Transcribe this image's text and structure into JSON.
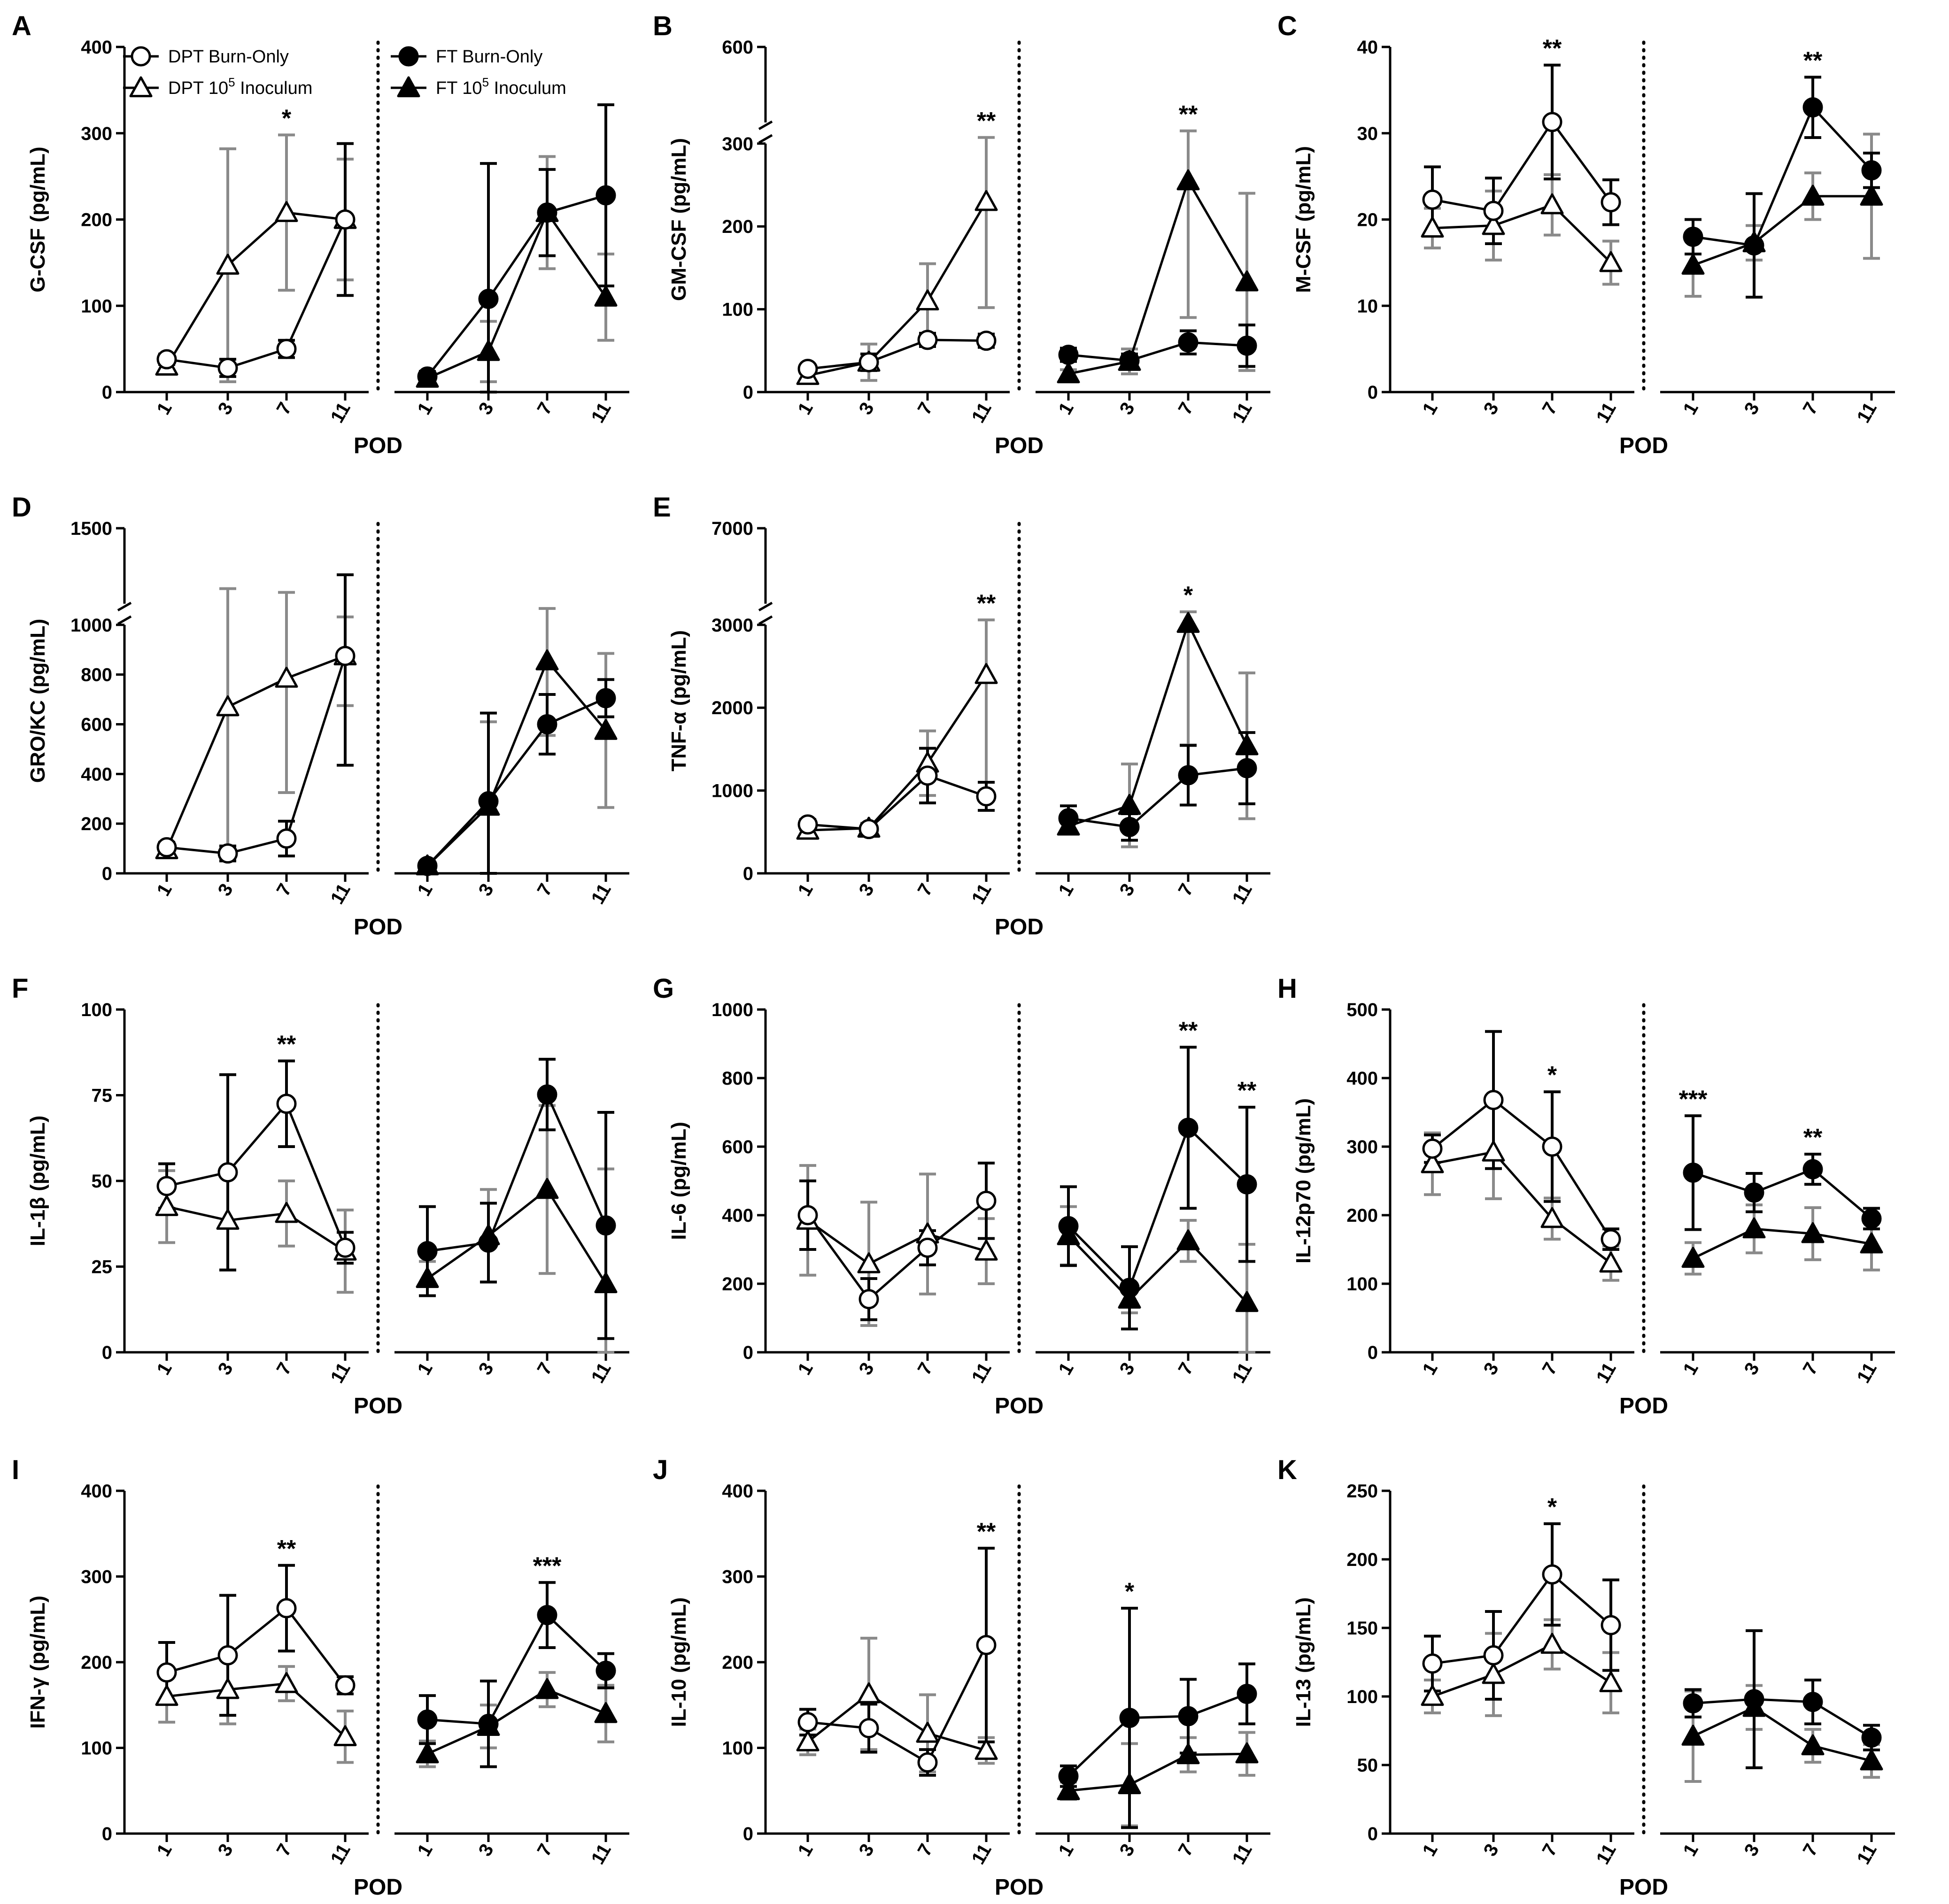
{
  "legend": [
    {
      "label": "DPT Burn-Only",
      "marker": "circle-open"
    },
    {
      "label": "DPT 10",
      "sup": "5",
      "suffix": " Inoculum",
      "marker": "triangle-open"
    },
    {
      "label": "FT Burn-Only",
      "marker": "circle-filled"
    },
    {
      "label": "FT 10",
      "sup": "5",
      "suffix": " Inoculum",
      "marker": "triangle-filled"
    }
  ],
  "chart_data": [
    {
      "panel": "A",
      "type": "line",
      "title": "",
      "ylabel": "G-CSF (pg/mL)",
      "xlabel": "POD",
      "categories": [
        "1",
        "3",
        "7",
        "11"
      ],
      "ylim": [
        0,
        400
      ],
      "yticks": [
        "0",
        "100",
        "200",
        "300",
        "400"
      ],
      "series": [
        {
          "name": "DPT Burn-Only",
          "values": [
            38,
            28,
            50,
            200
          ],
          "err": [
            6,
            10,
            10,
            88
          ]
        },
        {
          "name": "DPT 10^5 Inoculum",
          "values": [
            30,
            147,
            208,
            200
          ],
          "err": [
            6,
            135,
            90,
            70
          ]
        },
        {
          "name": "FT Burn-Only",
          "values": [
            18,
            108,
            208,
            228
          ],
          "err": [
            6,
            157,
            50,
            105
          ]
        },
        {
          "name": "FT 10^5 Inoculum",
          "values": [
            16,
            47,
            208,
            110
          ],
          "err": [
            6,
            35,
            65,
            50
          ]
        }
      ],
      "significance": [
        {
          "group": "DPT",
          "pod": "7",
          "label": "*"
        }
      ]
    },
    {
      "panel": "B",
      "type": "line",
      "title": "",
      "ylabel": "GM-CSF (pg/mL)",
      "xlabel": "POD",
      "categories": [
        "1",
        "3",
        "7",
        "11"
      ],
      "ylim": [
        0,
        600
      ],
      "axis_break": [
        300,
        500
      ],
      "yticks": [
        "0",
        "100",
        "200",
        "300",
        "600"
      ],
      "series": [
        {
          "name": "DPT Burn-Only",
          "values": [
            28,
            36,
            63,
            62
          ],
          "err": [
            5,
            10,
            8,
            8
          ]
        },
        {
          "name": "DPT 10^5 Inoculum",
          "values": [
            20,
            36,
            110,
            230
          ],
          "err": [
            5,
            22,
            45,
            128
          ]
        },
        {
          "name": "FT Burn-Only",
          "values": [
            45,
            38,
            60,
            56
          ],
          "err": [
            8,
            8,
            14,
            25
          ]
        },
        {
          "name": "FT 10^5 Inoculum",
          "values": [
            22,
            37,
            255,
            133
          ],
          "err": [
            5,
            15,
            165,
            107
          ]
        }
      ],
      "significance": [
        {
          "group": "DPT",
          "pod": "11",
          "label": "**"
        },
        {
          "group": "FT",
          "pod": "7",
          "label": "**"
        }
      ]
    },
    {
      "panel": "C",
      "type": "line",
      "title": "",
      "ylabel": "M-CSF (pg/mL)",
      "xlabel": "POD",
      "categories": [
        "1",
        "3",
        "7",
        "11"
      ],
      "ylim": [
        0,
        40
      ],
      "yticks": [
        "0",
        "10",
        "20",
        "30",
        "40"
      ],
      "series": [
        {
          "name": "DPT Burn-Only",
          "values": [
            22.3,
            21,
            31.3,
            22
          ],
          "err": [
            3.8,
            3.8,
            6.6,
            2.6
          ]
        },
        {
          "name": "DPT 10^5 Inoculum",
          "values": [
            19,
            19.3,
            21.7,
            15
          ],
          "err": [
            2.3,
            4,
            3.5,
            2.5
          ]
        },
        {
          "name": "FT Burn-Only",
          "values": [
            18,
            17,
            33,
            25.7
          ],
          "err": [
            2,
            6,
            3.5,
            2
          ]
        },
        {
          "name": "FT 10^5 Inoculum",
          "values": [
            14.7,
            17.3,
            22.7,
            22.7
          ],
          "err": [
            3.6,
            2,
            2.7,
            7.2
          ]
        }
      ],
      "significance": [
        {
          "group": "DPT",
          "pod": "7",
          "label": "**"
        },
        {
          "group": "FT",
          "pod": "7",
          "label": "**"
        }
      ]
    },
    {
      "panel": "D",
      "type": "line",
      "title": "",
      "ylabel": "GRO/KC (pg/mL)",
      "xlabel": "POD",
      "categories": [
        "1",
        "3",
        "7",
        "11"
      ],
      "ylim": [
        0,
        1500
      ],
      "axis_break": [
        1000,
        1200
      ],
      "yticks": [
        "0",
        "200",
        "400",
        "600",
        "800",
        "1000",
        "1500"
      ],
      "series": [
        {
          "name": "DPT Burn-Only",
          "values": [
            105,
            80,
            140,
            875
          ],
          "err": [
            20,
            30,
            70,
            440
          ]
        },
        {
          "name": "DPT 10^5 Inoculum",
          "values": [
            95,
            670,
            785,
            875
          ],
          "err": [
            20,
            590,
            460,
            200
          ]
        },
        {
          "name": "FT Burn-Only",
          "values": [
            30,
            290,
            600,
            705
          ],
          "err": [
            10,
            355,
            120,
            75
          ]
        },
        {
          "name": "FT 10^5 Inoculum",
          "values": [
            30,
            270,
            855,
            575
          ],
          "err": [
            10,
            340,
            300,
            310
          ]
        }
      ],
      "significance": []
    },
    {
      "panel": "E",
      "type": "line",
      "title": "",
      "ylabel": "TNF-α (pg/mL)",
      "xlabel": "POD",
      "categories": [
        "1",
        "3",
        "7",
        "11"
      ],
      "ylim": [
        0,
        7000
      ],
      "axis_break": [
        3000,
        6000
      ],
      "yticks": [
        "0",
        "1000",
        "2000",
        "3000",
        "7000"
      ],
      "series": [
        {
          "name": "DPT Burn-Only",
          "values": [
            590,
            535,
            1180,
            930
          ],
          "err": [
            60,
            60,
            330,
            170
          ]
        },
        {
          "name": "DPT 10^5 Inoculum",
          "values": [
            520,
            545,
            1330,
            2400
          ],
          "err": [
            60,
            60,
            390,
            1300
          ]
        },
        {
          "name": "FT Burn-Only",
          "values": [
            665,
            560,
            1185,
            1270
          ],
          "err": [
            150,
            160,
            360,
            430
          ]
        },
        {
          "name": "FT 10^5 Inoculum",
          "values": [
            570,
            820,
            3200,
            1540
          ],
          "err": [
            80,
            500,
            1650,
            880
          ]
        }
      ],
      "significance": [
        {
          "group": "DPT",
          "pod": "11",
          "label": "**"
        },
        {
          "group": "FT",
          "pod": "7",
          "label": "*"
        }
      ]
    },
    {
      "panel": "F",
      "type": "line",
      "title": "",
      "ylabel": "IL-1β (pg/mL)",
      "xlabel": "POD",
      "categories": [
        "1",
        "3",
        "7",
        "11"
      ],
      "ylim": [
        0,
        100
      ],
      "yticks": [
        "0",
        "25",
        "50",
        "75",
        "100"
      ],
      "series": [
        {
          "name": "DPT Burn-Only",
          "values": [
            48.5,
            52.5,
            72.5,
            30.5
          ],
          "err": [
            6.5,
            28.5,
            12.5,
            4.5
          ]
        },
        {
          "name": "DPT 10^5 Inoculum",
          "values": [
            42.5,
            38.5,
            40.5,
            29.5
          ],
          "err": [
            10.5,
            14.5,
            9.5,
            12
          ]
        },
        {
          "name": "FT Burn-Only",
          "values": [
            29.5,
            32,
            75.2,
            37
          ],
          "err": [
            13,
            11.5,
            10.3,
            33
          ]
        },
        {
          "name": "FT 10^5 Inoculum",
          "values": [
            21.5,
            34,
            47.5,
            20
          ],
          "err": [
            5,
            13.5,
            24.5,
            33.5
          ]
        }
      ],
      "significance": [
        {
          "group": "DPT",
          "pod": "7",
          "label": "**"
        }
      ]
    },
    {
      "panel": "G",
      "type": "line",
      "title": "",
      "ylabel": "IL-6 (pg/mL)",
      "xlabel": "POD",
      "categories": [
        "1",
        "3",
        "7",
        "11"
      ],
      "ylim": [
        0,
        1000
      ],
      "yticks": [
        "0",
        "200",
        "400",
        "600",
        "800",
        "1000"
      ],
      "series": [
        {
          "name": "DPT Burn-Only",
          "values": [
            400,
            155,
            305,
            442
          ],
          "err": [
            100,
            60,
            50,
            110
          ]
        },
        {
          "name": "DPT 10^5 Inoculum",
          "values": [
            385,
            258,
            345,
            295
          ],
          "err": [
            160,
            180,
            175,
            95
          ]
        },
        {
          "name": "FT Burn-Only",
          "values": [
            368,
            188,
            655,
            490
          ],
          "err": [
            115,
            120,
            235,
            225
          ]
        },
        {
          "name": "FT 10^5 Inoculum",
          "values": [
            340,
            155,
            325,
            145
          ],
          "err": [
            85,
            40,
            60,
            170
          ]
        }
      ],
      "significance": [
        {
          "group": "FT",
          "pod": "7",
          "label": "**"
        },
        {
          "group": "FT",
          "pod": "11",
          "label": "**"
        }
      ]
    },
    {
      "panel": "H",
      "type": "line",
      "title": "",
      "ylabel": "IL-12p70 (pg/mL)",
      "xlabel": "POD",
      "categories": [
        "1",
        "3",
        "7",
        "11"
      ],
      "ylim": [
        0,
        500
      ],
      "yticks": [
        "0",
        "100",
        "200",
        "300",
        "400",
        "500"
      ],
      "series": [
        {
          "name": "DPT Burn-Only",
          "values": [
            297,
            368,
            300,
            165
          ],
          "err": [
            20,
            100,
            80,
            15
          ]
        },
        {
          "name": "DPT 10^5 Inoculum",
          "values": [
            275,
            292,
            195,
            130
          ],
          "err": [
            45,
            68,
            30,
            25
          ]
        },
        {
          "name": "FT Burn-Only",
          "values": [
            262,
            233,
            267,
            195
          ],
          "err": [
            83,
            28,
            22,
            15
          ]
        },
        {
          "name": "FT 10^5 Inoculum",
          "values": [
            137,
            180,
            173,
            158
          ],
          "err": [
            23,
            35,
            38,
            38
          ]
        }
      ],
      "significance": [
        {
          "group": "DPT",
          "pod": "7",
          "label": "*"
        },
        {
          "group": "FT",
          "pod": "1",
          "label": "***"
        },
        {
          "group": "FT",
          "pod": "7",
          "label": "**"
        }
      ]
    },
    {
      "panel": "I",
      "type": "line",
      "title": "",
      "ylabel": "IFN-γ (pg/mL)",
      "xlabel": "POD",
      "categories": [
        "1",
        "3",
        "7",
        "11"
      ],
      "ylim": [
        0,
        400
      ],
      "yticks": [
        "0",
        "100",
        "200",
        "300",
        "400"
      ],
      "series": [
        {
          "name": "DPT Burn-Only",
          "values": [
            188,
            208,
            263,
            173
          ],
          "err": [
            35,
            70,
            50,
            10
          ]
        },
        {
          "name": "DPT 10^5 Inoculum",
          "values": [
            160,
            168,
            175,
            113
          ],
          "err": [
            30,
            40,
            20,
            30
          ]
        },
        {
          "name": "FT Burn-Only",
          "values": [
            133,
            128,
            255,
            190
          ],
          "err": [
            28,
            50,
            38,
            20
          ]
        },
        {
          "name": "FT 10^5 Inoculum",
          "values": [
            93,
            125,
            168,
            140
          ],
          "err": [
            15,
            25,
            20,
            33
          ]
        }
      ],
      "significance": [
        {
          "group": "DPT",
          "pod": "7",
          "label": "**"
        },
        {
          "group": "FT",
          "pod": "7",
          "label": "***"
        }
      ]
    },
    {
      "panel": "J",
      "type": "line",
      "title": "",
      "ylabel": "IL-10 (pg/mL)",
      "xlabel": "POD",
      "categories": [
        "1",
        "3",
        "7",
        "11"
      ],
      "ylim": [
        0,
        400
      ],
      "yticks": [
        "0",
        "100",
        "200",
        "300",
        "400"
      ],
      "series": [
        {
          "name": "DPT Burn-Only",
          "values": [
            130,
            123,
            83,
            220
          ],
          "err": [
            15,
            28,
            15,
            113
          ]
        },
        {
          "name": "DPT 10^5 Inoculum",
          "values": [
            107,
            163,
            117,
            97
          ],
          "err": [
            15,
            65,
            45,
            15
          ]
        },
        {
          "name": "FT Burn-Only",
          "values": [
            67,
            135,
            137,
            163
          ],
          "err": [
            12,
            128,
            43,
            35
          ]
        },
        {
          "name": "FT 10^5 Inoculum",
          "values": [
            50,
            57,
            92,
            93
          ],
          "err": [
            10,
            48,
            20,
            25
          ]
        }
      ],
      "significance": [
        {
          "group": "DPT",
          "pod": "11",
          "label": "**"
        },
        {
          "group": "FT",
          "pod": "3",
          "label": "*"
        }
      ]
    },
    {
      "panel": "K",
      "type": "line",
      "title": "",
      "ylabel": "IL-13 (pg/mL)",
      "xlabel": "POD",
      "categories": [
        "1",
        "3",
        "7",
        "11"
      ],
      "ylim": [
        0,
        250
      ],
      "yticks": [
        "0",
        "50",
        "100",
        "150",
        "200",
        "250"
      ],
      "series": [
        {
          "name": "DPT Burn-Only",
          "values": [
            124,
            130,
            189,
            152
          ],
          "err": [
            20,
            32,
            37,
            33
          ]
        },
        {
          "name": "DPT 10^5 Inoculum",
          "values": [
            100,
            116,
            138,
            110
          ],
          "err": [
            12,
            30,
            18,
            22
          ]
        },
        {
          "name": "FT Burn-Only",
          "values": [
            95,
            98,
            96,
            70
          ],
          "err": [
            10,
            50,
            16,
            9
          ]
        },
        {
          "name": "FT 10^5 Inoculum",
          "values": [
            71,
            92,
            64,
            53
          ],
          "err": [
            33,
            16,
            12,
            12
          ]
        }
      ],
      "significance": [
        {
          "group": "DPT",
          "pod": "7",
          "label": "*"
        }
      ]
    }
  ]
}
